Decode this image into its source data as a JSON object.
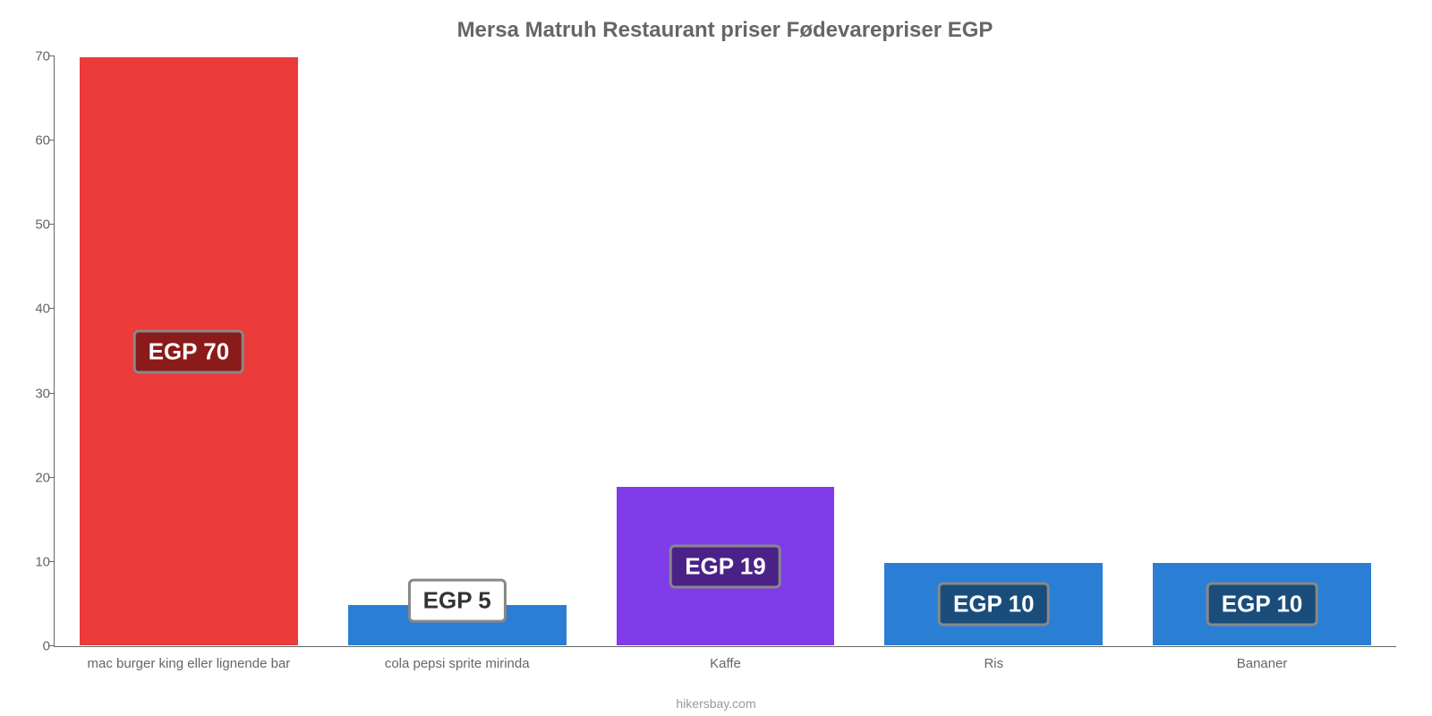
{
  "chart": {
    "type": "bar",
    "title": "Mersa Matruh Restaurant priser Fødevarepriser EGP",
    "title_color": "#666666",
    "title_fontsize": 24,
    "background_color": "#ffffff",
    "axis_color": "#666666",
    "label_color": "#666666",
    "label_fontsize": 15,
    "ylim": [
      0,
      70
    ],
    "ytick_step": 10,
    "yticks": [
      0,
      10,
      20,
      30,
      40,
      50,
      60,
      70
    ],
    "bar_width_pct": 82,
    "currency_prefix": "EGP ",
    "badge_border_color": "#888888",
    "badge_fontsize": 26,
    "bars": [
      {
        "label": "mac burger king eller lignende bar",
        "value": 70,
        "value_text": "EGP 70",
        "color": "#eb3b3b",
        "badge_bg": "#8b1a1a",
        "badge_mode": "inside"
      },
      {
        "label": "cola pepsi sprite mirinda",
        "value": 5,
        "value_text": "EGP 5",
        "color": "#2a7fd4",
        "badge_bg": "#ffffff",
        "badge_mode": "above"
      },
      {
        "label": "Kaffe",
        "value": 19,
        "value_text": "EGP 19",
        "color": "#7f3ce8",
        "badge_bg": "#4a2287",
        "badge_mode": "inside"
      },
      {
        "label": "Ris",
        "value": 10,
        "value_text": "EGP 10",
        "color": "#2a7fd4",
        "badge_bg": "#1a4d7a",
        "badge_mode": "inside"
      },
      {
        "label": "Bananer",
        "value": 10,
        "value_text": "EGP 10",
        "color": "#2a7fd4",
        "badge_bg": "#1a4d7a",
        "badge_mode": "inside"
      }
    ],
    "footer": "hikersbay.com",
    "footer_color": "#999999"
  }
}
